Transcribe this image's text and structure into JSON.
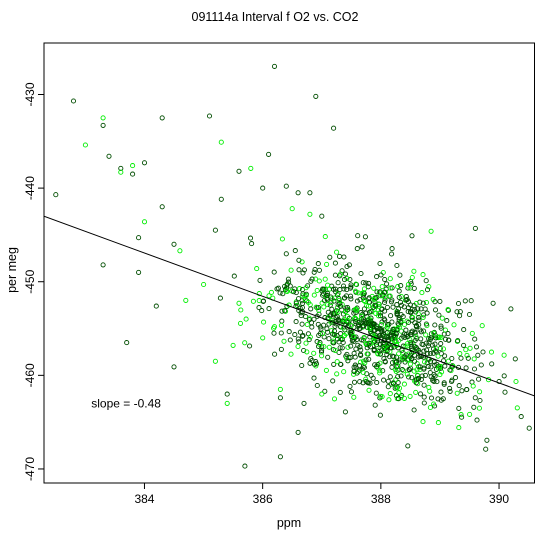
{
  "chart_data": {
    "type": "scatter",
    "title": "091114a   Interval f O2 vs. CO2",
    "xlabel": "ppm",
    "ylabel": "per meg",
    "xlim": [
      382.3,
      390.6
    ],
    "ylim": [
      -471.5,
      -424.5
    ],
    "xticks": [
      384,
      386,
      388,
      390
    ],
    "yticks": [
      -430,
      -440,
      -450,
      -460,
      -470
    ],
    "grid": false,
    "legend": "none",
    "annotation": {
      "text": "slope =  -0.48",
      "x": 383.1,
      "y": -463
    },
    "fit_line": {
      "slope": -0.48,
      "x": [
        382.3,
        390.6
      ],
      "y": [
        -443.0,
        -462.2
      ]
    },
    "series": [
      {
        "color": "#004d00",
        "points": [
          [
            382.5,
            -440.7
          ],
          [
            382.8,
            -430.7
          ],
          [
            383.3,
            -433.3
          ],
          [
            383.4,
            -436.6
          ],
          [
            383.6,
            -437.9
          ],
          [
            383.8,
            -438.5
          ],
          [
            384.0,
            -437.3
          ],
          [
            383.9,
            -445.3
          ],
          [
            383.7,
            -456.5
          ],
          [
            384.3,
            -442.0
          ],
          [
            384.5,
            -446.0
          ],
          [
            384.3,
            -432.5
          ],
          [
            385.1,
            -432.3
          ],
          [
            385.2,
            -444.5
          ],
          [
            385.3,
            -441.2
          ],
          [
            385.6,
            -438.2
          ],
          [
            386.1,
            -436.4
          ],
          [
            386.0,
            -440.0
          ],
          [
            386.2,
            -427.0
          ],
          [
            386.4,
            -439.8
          ],
          [
            386.6,
            -440.5
          ],
          [
            386.8,
            -440.5
          ],
          [
            386.9,
            -430.2
          ],
          [
            387.2,
            -433.6
          ],
          [
            387.0,
            -443.0
          ],
          [
            387.3,
            -447.3
          ],
          [
            389.6,
            -444.3
          ],
          [
            390.2,
            -452.9
          ],
          [
            389.9,
            -452.3
          ],
          [
            389.7,
            -458.9
          ],
          [
            389.3,
            -456.3
          ],
          [
            388.3,
            -462.5
          ],
          [
            387.4,
            -463.9
          ],
          [
            386.3,
            -468.7
          ],
          [
            385.7,
            -469.7
          ],
          [
            386.6,
            -466.1
          ],
          [
            383.9,
            -449.0
          ],
          [
            384.5,
            -459.1
          ],
          [
            384.2,
            -452.6
          ],
          [
            383.3,
            -448.2
          ],
          [
            385.4,
            -462.0
          ],
          [
            386.3,
            -462.4
          ],
          [
            386.7,
            -463.0
          ],
          [
            387.7,
            -460.8
          ],
          [
            388.9,
            -459.9
          ],
          [
            389.4,
            -456.8
          ],
          [
            389.0,
            -452.1
          ],
          [
            389.5,
            -453.5
          ],
          [
            389.2,
            -458.2
          ],
          [
            388.6,
            -460.8
          ]
        ]
      },
      {
        "color": "#00ee00",
        "points": [
          [
            383.0,
            -435.4
          ],
          [
            383.3,
            -432.5
          ],
          [
            383.6,
            -438.3
          ],
          [
            383.8,
            -437.6
          ],
          [
            384.0,
            -443.6
          ],
          [
            384.6,
            -446.7
          ],
          [
            385.0,
            -450.3
          ],
          [
            385.3,
            -435.1
          ],
          [
            385.8,
            -437.9
          ],
          [
            386.5,
            -442.2
          ],
          [
            386.8,
            -442.8
          ],
          [
            386.0,
            -456.0
          ],
          [
            385.4,
            -463.0
          ],
          [
            385.2,
            -458.5
          ],
          [
            386.3,
            -461.5
          ],
          [
            386.9,
            -459.0
          ],
          [
            387.5,
            -454.7
          ],
          [
            387.9,
            -456.0
          ],
          [
            388.3,
            -457.7
          ],
          [
            387.0,
            -462.0
          ],
          [
            387.8,
            -461.6
          ],
          [
            388.5,
            -458.8
          ],
          [
            388.0,
            -451.5
          ],
          [
            387.3,
            -452.0
          ],
          [
            386.4,
            -451.0
          ],
          [
            385.6,
            -452.3
          ],
          [
            385.9,
            -448.6
          ],
          [
            384.7,
            -452.0
          ],
          [
            385.5,
            -456.8
          ],
          [
            386.2,
            -454.8
          ]
        ]
      }
    ],
    "cluster": {
      "seed": 91114,
      "count": 1050,
      "center": [
        387.9,
        -455.3
      ],
      "spread": [
        0.85,
        3.4
      ],
      "slope": -2.2,
      "dark_color": "#004d00",
      "light_color": "#00ee00"
    }
  }
}
